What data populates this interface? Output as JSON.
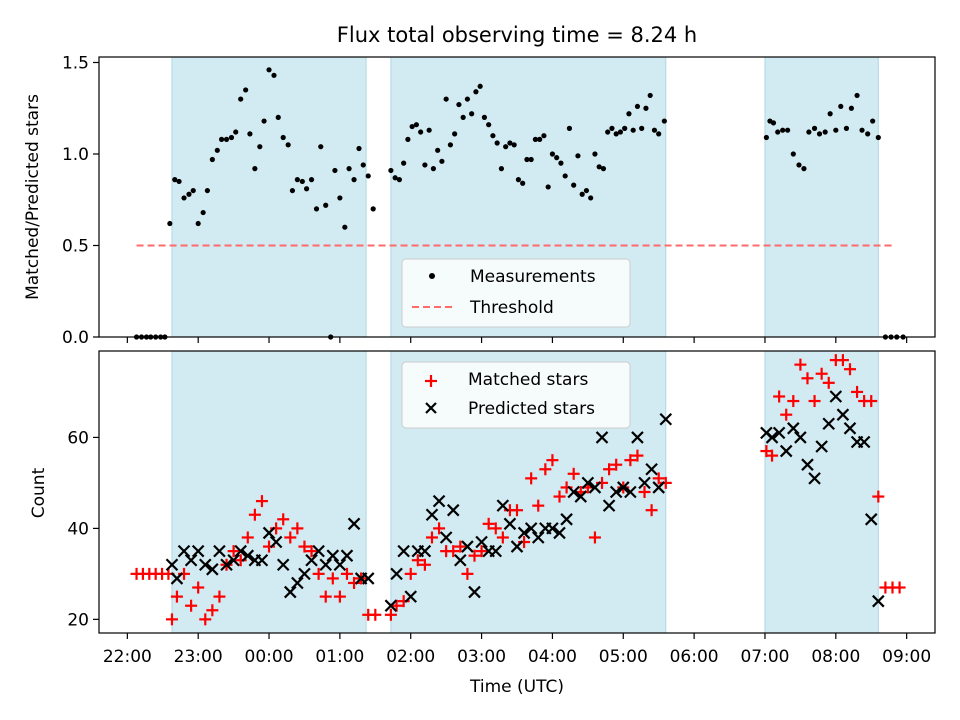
{
  "title": "Flux total observing time = 8.24 h",
  "colors": {
    "band": "#add8e6",
    "measurement": "#000000",
    "threshold": "#ff6b6b",
    "matched": "#ff0000",
    "predicted": "#000000"
  },
  "x_axis": {
    "label": "Time (UTC)",
    "ticks": [
      "22:00",
      "23:00",
      "00:00",
      "01:00",
      "02:00",
      "03:00",
      "04:00",
      "05:00",
      "06:00",
      "07:00",
      "08:00",
      "09:00"
    ],
    "tick_hours": [
      0,
      1,
      2,
      3,
      4,
      5,
      6,
      7,
      8,
      9,
      10,
      11
    ],
    "xlim_hours_since_22": [
      -0.4,
      11.4
    ]
  },
  "chart_data": [
    {
      "type": "scatter",
      "panel": "top",
      "title": "Flux total observing time = 8.24 h",
      "xlabel": "",
      "ylabel": "Matched/Predicted stars",
      "ylim": [
        0,
        1.53
      ],
      "yticks": [
        "0.0",
        "0.5",
        "1.0",
        "1.5"
      ],
      "ytick_values": [
        0.0,
        0.5,
        1.0,
        1.5
      ],
      "legend": {
        "placement": "lower-center",
        "entries": [
          "Measurements",
          "Threshold"
        ]
      },
      "bands_hours": [
        [
          0.63,
          3.37
        ],
        [
          3.72,
          7.6
        ],
        [
          9.0,
          10.6
        ]
      ],
      "threshold": {
        "name": "Threshold",
        "value": 0.5,
        "x_range_hours": [
          0.13,
          10.83
        ]
      },
      "series": [
        {
          "name": "Measurements",
          "marker": "dot",
          "x_hours": [
            0.13,
            0.2,
            0.27,
            0.33,
            0.4,
            0.47,
            0.53,
            0.6,
            0.67,
            0.73,
            0.8,
            0.87,
            0.93,
            1.0,
            1.07,
            1.13,
            1.2,
            1.27,
            1.33,
            1.4,
            1.47,
            1.53,
            1.6,
            1.67,
            1.73,
            1.8,
            1.87,
            1.93,
            2.0,
            2.07,
            2.13,
            2.2,
            2.27,
            2.33,
            2.4,
            2.47,
            2.53,
            2.6,
            2.67,
            2.73,
            2.8,
            2.87,
            2.93,
            3.0,
            3.07,
            3.13,
            3.2,
            3.27,
            3.33,
            3.4,
            3.47,
            3.72,
            3.78,
            3.84,
            3.9,
            3.96,
            4.02,
            4.08,
            4.14,
            4.2,
            4.26,
            4.32,
            4.38,
            4.44,
            4.5,
            4.56,
            4.62,
            4.68,
            4.74,
            4.8,
            4.86,
            4.92,
            4.98,
            5.04,
            5.1,
            5.16,
            5.22,
            5.28,
            5.34,
            5.4,
            5.46,
            5.52,
            5.58,
            5.64,
            5.7,
            5.76,
            5.82,
            5.88,
            5.94,
            6.0,
            6.06,
            6.12,
            6.18,
            6.24,
            6.3,
            6.36,
            6.42,
            6.48,
            6.54,
            6.6,
            6.66,
            6.72,
            6.78,
            6.84,
            6.9,
            6.96,
            7.02,
            7.08,
            7.14,
            7.2,
            7.26,
            7.32,
            7.38,
            7.44,
            7.5,
            7.58,
            9.02,
            9.07,
            9.12,
            9.18,
            9.25,
            9.32,
            9.4,
            9.48,
            9.55,
            9.62,
            9.7,
            9.77,
            9.85,
            9.92,
            10.0,
            10.07,
            10.15,
            10.22,
            10.3,
            10.37,
            10.45,
            10.52,
            10.6,
            10.7,
            10.78,
            10.86,
            10.95
          ],
          "y": [
            0,
            0,
            0,
            0,
            0,
            0,
            0,
            0.62,
            0.86,
            0.85,
            0.76,
            0.78,
            0.8,
            0.62,
            0.68,
            0.8,
            0.97,
            1.02,
            1.08,
            1.08,
            1.09,
            1.12,
            1.3,
            1.35,
            1.11,
            0.92,
            1.04,
            1.18,
            1.46,
            1.43,
            1.2,
            1.09,
            1.05,
            0.8,
            0.86,
            0.85,
            0.81,
            0.86,
            0.7,
            1.04,
            0.72,
            0.0,
            0.91,
            0.76,
            0.6,
            0.92,
            0.86,
            1.03,
            0.94,
            0.88,
            0.7,
            0.91,
            0.87,
            0.86,
            0.95,
            1.08,
            1.15,
            1.16,
            1.12,
            0.94,
            1.13,
            0.92,
            1.02,
            0.96,
            1.3,
            1.05,
            1.11,
            1.27,
            1.2,
            1.3,
            1.22,
            1.34,
            1.37,
            1.2,
            1.16,
            1.1,
            1.06,
            0.92,
            1.04,
            1.06,
            1.05,
            0.86,
            0.84,
            0.97,
            0.97,
            1.08,
            1.08,
            1.1,
            0.82,
            1.0,
            0.98,
            0.95,
            0.88,
            1.14,
            0.83,
            0.99,
            0.78,
            0.8,
            0.76,
            1.0,
            0.93,
            0.92,
            1.12,
            1.14,
            1.11,
            1.12,
            1.14,
            1.22,
            1.13,
            1.26,
            1.14,
            1.25,
            1.32,
            1.13,
            1.11,
            1.18,
            1.09,
            1.18,
            1.17,
            1.12,
            1.13,
            1.13,
            1.0,
            0.94,
            0.92,
            1.12,
            1.14,
            1.11,
            1.12,
            1.22,
            1.13,
            1.26,
            1.14,
            1.25,
            1.32,
            1.13,
            1.11,
            1.18,
            1.09,
            0.0,
            0.0,
            0.0,
            0.0
          ]
        }
      ]
    },
    {
      "type": "scatter",
      "panel": "bottom",
      "xlabel": "Time (UTC)",
      "ylabel": "Count",
      "ylim": [
        17,
        79
      ],
      "yticks": [
        "20",
        "40",
        "60"
      ],
      "ytick_values": [
        20,
        40,
        60
      ],
      "legend": {
        "placement": "top-center",
        "entries": [
          "Matched stars",
          "Predicted stars"
        ]
      },
      "bands_hours": [
        [
          0.63,
          3.37
        ],
        [
          3.72,
          7.6
        ],
        [
          9.0,
          10.6
        ]
      ],
      "series": [
        {
          "name": "Matched stars",
          "marker": "plus",
          "x_hours": [
            0.13,
            0.22,
            0.31,
            0.4,
            0.49,
            0.58,
            0.63,
            0.7,
            0.8,
            0.9,
            1.0,
            1.1,
            1.2,
            1.3,
            1.4,
            1.5,
            1.6,
            1.7,
            1.8,
            1.9,
            2.0,
            2.1,
            2.2,
            2.3,
            2.4,
            2.5,
            2.6,
            2.7,
            2.8,
            2.9,
            3.0,
            3.1,
            3.2,
            3.3,
            3.4,
            3.5,
            3.72,
            3.8,
            3.9,
            4.0,
            4.1,
            4.2,
            4.3,
            4.4,
            4.5,
            4.6,
            4.7,
            4.8,
            4.9,
            5.0,
            5.1,
            5.2,
            5.3,
            5.4,
            5.5,
            5.6,
            5.7,
            5.8,
            5.9,
            6.0,
            6.1,
            6.2,
            6.3,
            6.4,
            6.5,
            6.6,
            6.7,
            6.8,
            6.9,
            7.0,
            7.1,
            7.2,
            7.3,
            7.4,
            7.5,
            7.6,
            9.02,
            9.1,
            9.2,
            9.3,
            9.4,
            9.5,
            9.6,
            9.7,
            9.8,
            9.9,
            10.0,
            10.1,
            10.2,
            10.3,
            10.4,
            10.5,
            10.6,
            10.7,
            10.8,
            10.9
          ],
          "y": [
            30,
            30,
            30,
            30,
            30,
            30,
            20,
            25,
            30,
            23,
            27,
            20,
            22,
            25,
            32,
            35,
            33,
            38,
            43,
            46,
            36,
            40,
            42,
            38,
            40,
            36,
            35,
            30,
            25,
            29,
            25,
            30,
            28,
            29,
            21,
            21,
            21,
            23,
            24,
            30,
            33,
            32,
            38,
            40,
            35,
            35,
            36,
            30,
            34,
            35,
            41,
            40,
            38,
            44,
            44,
            37,
            51,
            45,
            53,
            55,
            47,
            49,
            52,
            48,
            49,
            38,
            50,
            53,
            54,
            49,
            55,
            56,
            48,
            44,
            51,
            50,
            57,
            56,
            69,
            65,
            68,
            76,
            73,
            68,
            74,
            72,
            77,
            77,
            75,
            70,
            68,
            68,
            47,
            27,
            27,
            27
          ]
        },
        {
          "name": "Predicted stars",
          "marker": "cross",
          "x_hours": [
            0.63,
            0.7,
            0.8,
            0.9,
            1.0,
            1.1,
            1.2,
            1.3,
            1.4,
            1.5,
            1.6,
            1.7,
            1.8,
            1.9,
            2.0,
            2.1,
            2.2,
            2.3,
            2.4,
            2.5,
            2.6,
            2.7,
            2.8,
            2.9,
            3.0,
            3.1,
            3.2,
            3.3,
            3.4,
            3.72,
            3.8,
            3.9,
            4.0,
            4.1,
            4.2,
            4.3,
            4.4,
            4.5,
            4.6,
            4.7,
            4.8,
            4.9,
            5.0,
            5.1,
            5.2,
            5.3,
            5.4,
            5.5,
            5.6,
            5.7,
            5.8,
            5.9,
            6.0,
            6.1,
            6.2,
            6.3,
            6.4,
            6.5,
            6.6,
            6.7,
            6.8,
            6.9,
            7.0,
            7.1,
            7.2,
            7.3,
            7.4,
            7.5,
            7.6,
            9.02,
            9.1,
            9.2,
            9.3,
            9.4,
            9.5,
            9.6,
            9.7,
            9.8,
            9.9,
            10.0,
            10.1,
            10.2,
            10.3,
            10.4,
            10.5,
            10.6
          ],
          "y": [
            32,
            29,
            35,
            33,
            35,
            32,
            31,
            35,
            32,
            33,
            35,
            34,
            33,
            33,
            39,
            37,
            32,
            26,
            28,
            30,
            33,
            35,
            32,
            34,
            32,
            34,
            41,
            29,
            29,
            23,
            30,
            35,
            25,
            35,
            35,
            43,
            46,
            38,
            44,
            33,
            36,
            26,
            37,
            35,
            35,
            45,
            41,
            36,
            39,
            40,
            38,
            40,
            40,
            39,
            42,
            48,
            47,
            50,
            49,
            60,
            45,
            48,
            49,
            48,
            60,
            50,
            53,
            49,
            64,
            61,
            60,
            61,
            57,
            62,
            60,
            54,
            51,
            58,
            63,
            69,
            65,
            62,
            59,
            59,
            42,
            24
          ]
        }
      ]
    }
  ]
}
